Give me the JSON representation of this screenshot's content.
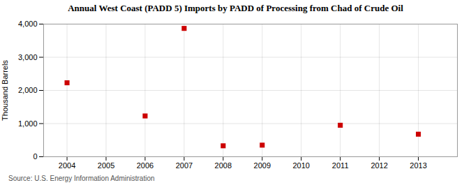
{
  "chart_data": {
    "type": "scatter",
    "title": "Annual West Coast (PADD 5) Imports by PADD of Processing from Chad of Crude Oil",
    "y_label": "Thousand Barrels",
    "annotations": [
      "Source: U.S. Energy Information Administration"
    ],
    "x": [
      2004,
      2006,
      2007,
      2008,
      2009,
      2011,
      2013
    ],
    "values": [
      2230,
      1230,
      3870,
      330,
      350,
      950,
      680
    ],
    "color": "#cc0000",
    "marker": "square",
    "xlim": [
      2003.4,
      2014.0
    ],
    "xticks": [
      2004,
      2005,
      2006,
      2007,
      2008,
      2009,
      2010,
      2011,
      2012,
      2013
    ],
    "ylim": [
      0,
      4000
    ],
    "yticks": [
      0,
      {
        "value": 1000,
        "label": "1,000"
      },
      {
        "value": 2000,
        "label": "2,000"
      },
      {
        "value": 3000,
        "label": "3,000"
      },
      {
        "value": 4000,
        "label": "4,000"
      }
    ],
    "grid": true
  }
}
